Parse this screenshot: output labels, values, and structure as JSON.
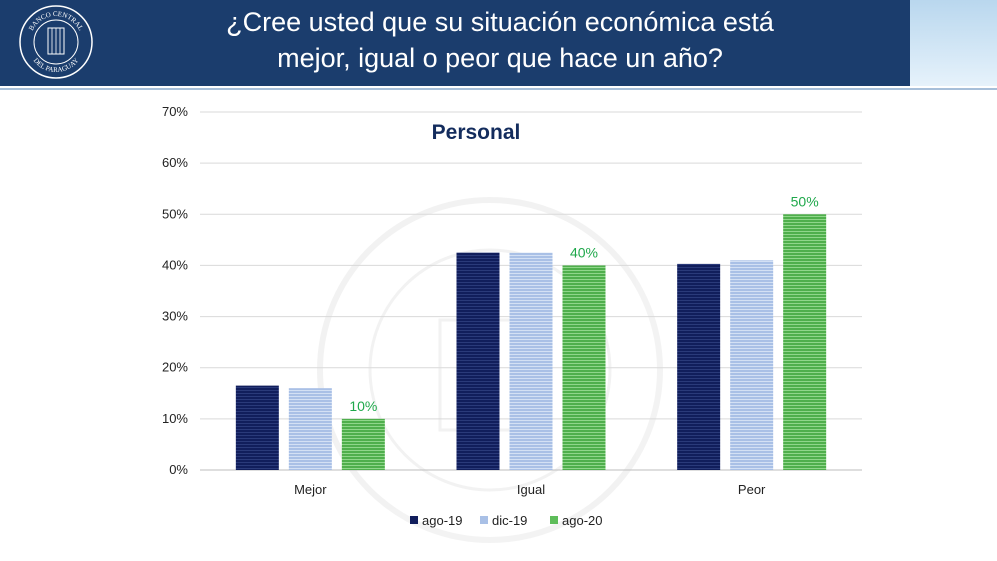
{
  "header": {
    "title_line1": "¿Cree usted que su situación económica está",
    "title_line2": "mejor, igual o peor que hace un año?",
    "seal_text_top": "BANCO CENTRAL",
    "seal_text_bottom": "DEL PARAGUAY"
  },
  "colors": {
    "header_bg": "#1b3d6d",
    "ago19": "#111e5c",
    "dic19": "#a9c0e6",
    "ago20": "#5ebd5a",
    "label_green": "#1fa84b"
  },
  "chart_data": {
    "type": "bar",
    "title": "Personal",
    "categories": [
      "Mejor",
      "Igual",
      "Peor"
    ],
    "series": [
      {
        "name": "ago-19",
        "values": [
          16.5,
          42.5,
          40.3
        ],
        "color": "#111e5c"
      },
      {
        "name": "dic-19",
        "values": [
          16.0,
          42.5,
          41.0
        ],
        "color": "#a9c0e6"
      },
      {
        "name": "ago-20",
        "values": [
          10,
          40,
          50
        ],
        "color": "#5ebd5a",
        "labels": [
          "10%",
          "40%",
          "50%"
        ]
      }
    ],
    "ylim": [
      0,
      70
    ],
    "yticks": [
      "0%",
      "10%",
      "20%",
      "30%",
      "40%",
      "50%",
      "60%",
      "70%"
    ],
    "grid": true,
    "legend": "bottom"
  }
}
